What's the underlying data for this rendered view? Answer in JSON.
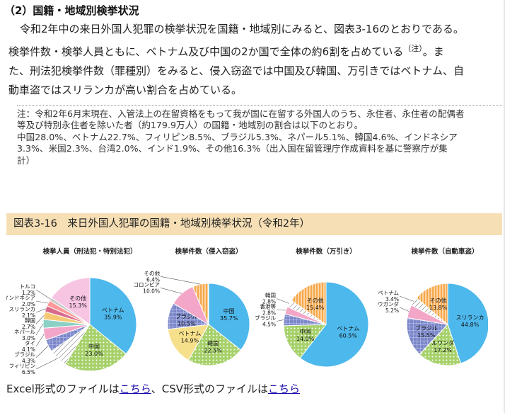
{
  "heading": "（2）国籍・地域別検挙状況",
  "paragraph": {
    "line1": "令和2年中の来日外国人犯罪の検挙状況を国籍・地域別にみると、図表3-16のとおりである。",
    "line2a": "検挙件数・検挙人員ともに、ベトナム及び中国の2か国で全体の約6割を占めている",
    "note_ref": "（注）",
    "line2b": "。ま",
    "line3": "た、刑法犯検挙件数（罪種別）をみると、侵入窃盗では中国及び韓国、万引きではベトナム、自",
    "line4": "動車盗ではスリランカが高い割合を占めている。"
  },
  "note": {
    "line1": "注：令和2年6月末現在、入管法上の在留資格をもって我が国に在留する外国人のうち、永住者、永住者の配偶者",
    "line2": "等及び特別永住者を除いた者（約179.9万人）の国籍・地域別の割合は以下のとおり。",
    "line3": "中国28.0%、ベトナム22.7%、フィリピン8.5%、ブラジル5.3%、ネパール5.1%、韓国4.6%、インドネシア",
    "line4": "3.3%、米国2.3%、台湾2.0%、インド1.9%、その他16.3%（出入国在留管理庁作成資料を基に警察庁が集",
    "line5": "計）"
  },
  "figure_title": "図表3-16　来日外国人犯罪の国籍・地域別検挙状況（令和2年）",
  "chart_data": [
    {
      "type": "pie",
      "title": "検挙人員（刑法犯・特別法犯）",
      "slices": [
        {
          "name": "ベトナム",
          "value": 35.9,
          "color": "#4db8ec",
          "pattern": "none",
          "label_pos": "inside"
        },
        {
          "name": "中国",
          "value": 23.0,
          "color": "#a6d16a",
          "pattern": "dots",
          "label_pos": "inside"
        },
        {
          "name": "フィリピン",
          "value": 6.5,
          "color": "#ffffff",
          "pattern": "hatch",
          "label_pos": "outside"
        },
        {
          "name": "ブラジル",
          "value": 4.3,
          "color": "#7b87c9",
          "pattern": "grid",
          "label_pos": "outside"
        },
        {
          "name": "タイ",
          "value": 4.1,
          "color": "#f3a6c8",
          "pattern": "none",
          "label_pos": "outside"
        },
        {
          "name": "ネパール",
          "value": 3.0,
          "color": "#8bd0c4",
          "pattern": "none",
          "label_pos": "outside"
        },
        {
          "name": "韓国",
          "value": 2.7,
          "color": "#f7c873",
          "pattern": "none",
          "label_pos": "outside"
        },
        {
          "name": "スリランカ",
          "value": 2.1,
          "color": "#d86a8a",
          "pattern": "none",
          "label_pos": "outside"
        },
        {
          "name": "インドネシア",
          "value": 2.0,
          "color": "#ff9999",
          "pattern": "none",
          "label_pos": "outside"
        },
        {
          "name": "トルコ",
          "value": 1.2,
          "color": "#c9c9c9",
          "pattern": "none",
          "label_pos": "outside"
        },
        {
          "name": "その他",
          "value": 15.3,
          "color": "#f7c4e2",
          "pattern": "none",
          "label_pos": "inside"
        }
      ]
    },
    {
      "type": "pie",
      "title": "検挙件数（侵入窃盗）",
      "slices": [
        {
          "name": "中国",
          "value": 35.7,
          "color": "#4db8ec",
          "pattern": "none",
          "label_pos": "inside"
        },
        {
          "name": "韓国",
          "value": 22.5,
          "color": "#a6d16a",
          "pattern": "dots",
          "label_pos": "inside"
        },
        {
          "name": "ベトナム",
          "value": 14.9,
          "color": "#f7e08c",
          "pattern": "none",
          "label_pos": "inside"
        },
        {
          "name": "ブラジル",
          "value": 10.5,
          "color": "#7b87c9",
          "pattern": "grid",
          "label_pos": "inside"
        },
        {
          "name": "コロンビア",
          "value": 10.0,
          "color": "#f3a6c8",
          "pattern": "none",
          "label_pos": "outside"
        },
        {
          "name": "その他",
          "value": 6.4,
          "color": "#f7a84a",
          "pattern": "stripes",
          "label_pos": "outside"
        }
      ]
    },
    {
      "type": "pie",
      "title": "検挙件数（万引き）",
      "slices": [
        {
          "name": "ベトナム",
          "value": 60.5,
          "color": "#4db8ec",
          "pattern": "none",
          "label_pos": "inside"
        },
        {
          "name": "中国",
          "value": 14.0,
          "color": "#a6d16a",
          "pattern": "dots",
          "label_pos": "inside"
        },
        {
          "name": "ブラジル",
          "value": 4.5,
          "color": "#7b87c9",
          "pattern": "grid",
          "label_pos": "outside"
        },
        {
          "name": "香港等",
          "value": 2.8,
          "color": "#f3a6c8",
          "pattern": "none",
          "label_pos": "outside"
        },
        {
          "name": "韓国",
          "value": 2.8,
          "color": "#ffffff",
          "pattern": "hatch",
          "label_pos": "outside"
        },
        {
          "name": "その他",
          "value": 15.4,
          "color": "#f7a84a",
          "pattern": "stripes",
          "label_pos": "inside"
        }
      ]
    },
    {
      "type": "pie",
      "title": "検挙件数（自動車盗）",
      "slices": [
        {
          "name": "スリランカ",
          "value": 44.8,
          "color": "#4db8ec",
          "pattern": "none",
          "label_pos": "inside"
        },
        {
          "name": "ルワンダ",
          "value": 17.2,
          "color": "#a6d16a",
          "pattern": "dots",
          "label_pos": "inside"
        },
        {
          "name": "ブラジル",
          "value": 15.5,
          "color": "#7b87c9",
          "pattern": "grid",
          "label_pos": "inside"
        },
        {
          "name": "ウガンダ",
          "value": 5.2,
          "color": "#f3a6c8",
          "pattern": "none",
          "label_pos": "outside"
        },
        {
          "name": "ベトナム",
          "value": 3.4,
          "color": "#ffffff",
          "pattern": "hatch",
          "label_pos": "outside"
        },
        {
          "name": "その他",
          "value": 13.8,
          "color": "#f7a84a",
          "pattern": "stripes",
          "label_pos": "inside"
        }
      ]
    }
  ],
  "links": {
    "excel_prefix": "Excel形式のファイルは",
    "excel_link": "こちら",
    "separator": "、CSV形式のファイルは",
    "csv_link": "こちら"
  }
}
